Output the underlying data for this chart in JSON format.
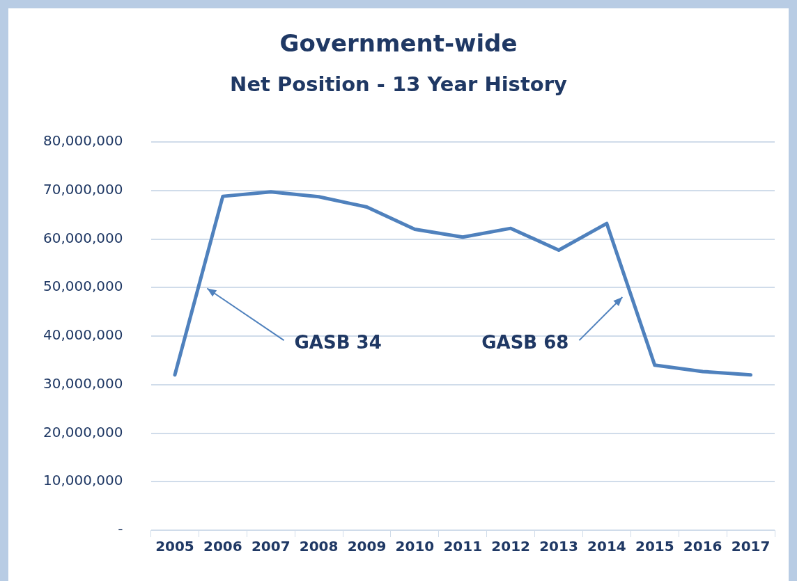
{
  "chart_data": {
    "type": "line",
    "title": "Government-wide",
    "subtitle": "Net Position - 13 Year History",
    "categories": [
      "2005",
      "2006",
      "2007",
      "2008",
      "2009",
      "2010",
      "2011",
      "2012",
      "2013",
      "2014",
      "2015",
      "2016",
      "2017"
    ],
    "series": [
      {
        "color": "#4f81bd",
        "values": [
          32000000,
          68800000,
          69700000,
          68700000,
          66600000,
          62000000,
          60400000,
          62200000,
          57700000,
          63200000,
          34000000,
          32700000,
          32000000
        ]
      }
    ],
    "ylim": [
      0,
      80000000
    ],
    "yticks": [
      {
        "value": 0,
        "label": "-"
      },
      {
        "value": 10000000,
        "label": "10,000,000"
      },
      {
        "value": 20000000,
        "label": "20,000,000"
      },
      {
        "value": 30000000,
        "label": "30,000,000"
      },
      {
        "value": 40000000,
        "label": "40,000,000"
      },
      {
        "value": 50000000,
        "label": "50,000,000"
      },
      {
        "value": 60000000,
        "label": "60,000,000"
      },
      {
        "value": 70000000,
        "label": "70,000,000"
      },
      {
        "value": 80000000,
        "label": "80,000,000"
      }
    ],
    "grid": "y",
    "legend": false,
    "marker": "none",
    "line_style": "solid",
    "annotations": [
      "GASB 34",
      "GASB 68"
    ]
  }
}
